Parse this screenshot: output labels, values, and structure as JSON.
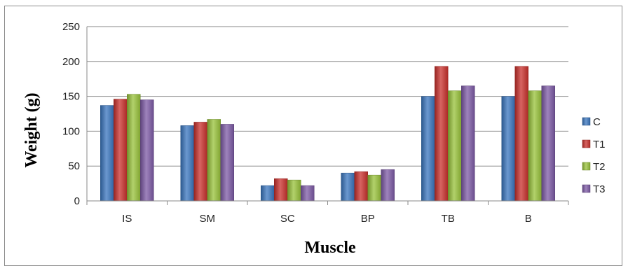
{
  "chart_data": {
    "type": "bar",
    "title": "",
    "xlabel": "Muscle",
    "ylabel": "Weight (g)",
    "ylim": [
      0,
      250
    ],
    "yticks": [
      "0",
      "50",
      "100",
      "150",
      "200",
      "250"
    ],
    "grid": true,
    "legend_position": "right",
    "categories": [
      "IS",
      "SM",
      "SC",
      "BP",
      "TB",
      "B"
    ],
    "series": [
      {
        "name": "C",
        "color": "#3a76bf",
        "values": [
          137,
          108,
          22,
          40,
          150,
          150
        ]
      },
      {
        "name": "T1",
        "color": "#c9302c",
        "values": [
          146,
          113,
          32,
          42,
          193,
          193
        ]
      },
      {
        "name": "T2",
        "color": "#98c23a",
        "values": [
          153,
          117,
          30,
          37,
          158,
          158
        ]
      },
      {
        "name": "T3",
        "color": "#7d5aa6",
        "values": [
          145,
          110,
          22,
          45,
          165,
          165
        ]
      }
    ]
  }
}
